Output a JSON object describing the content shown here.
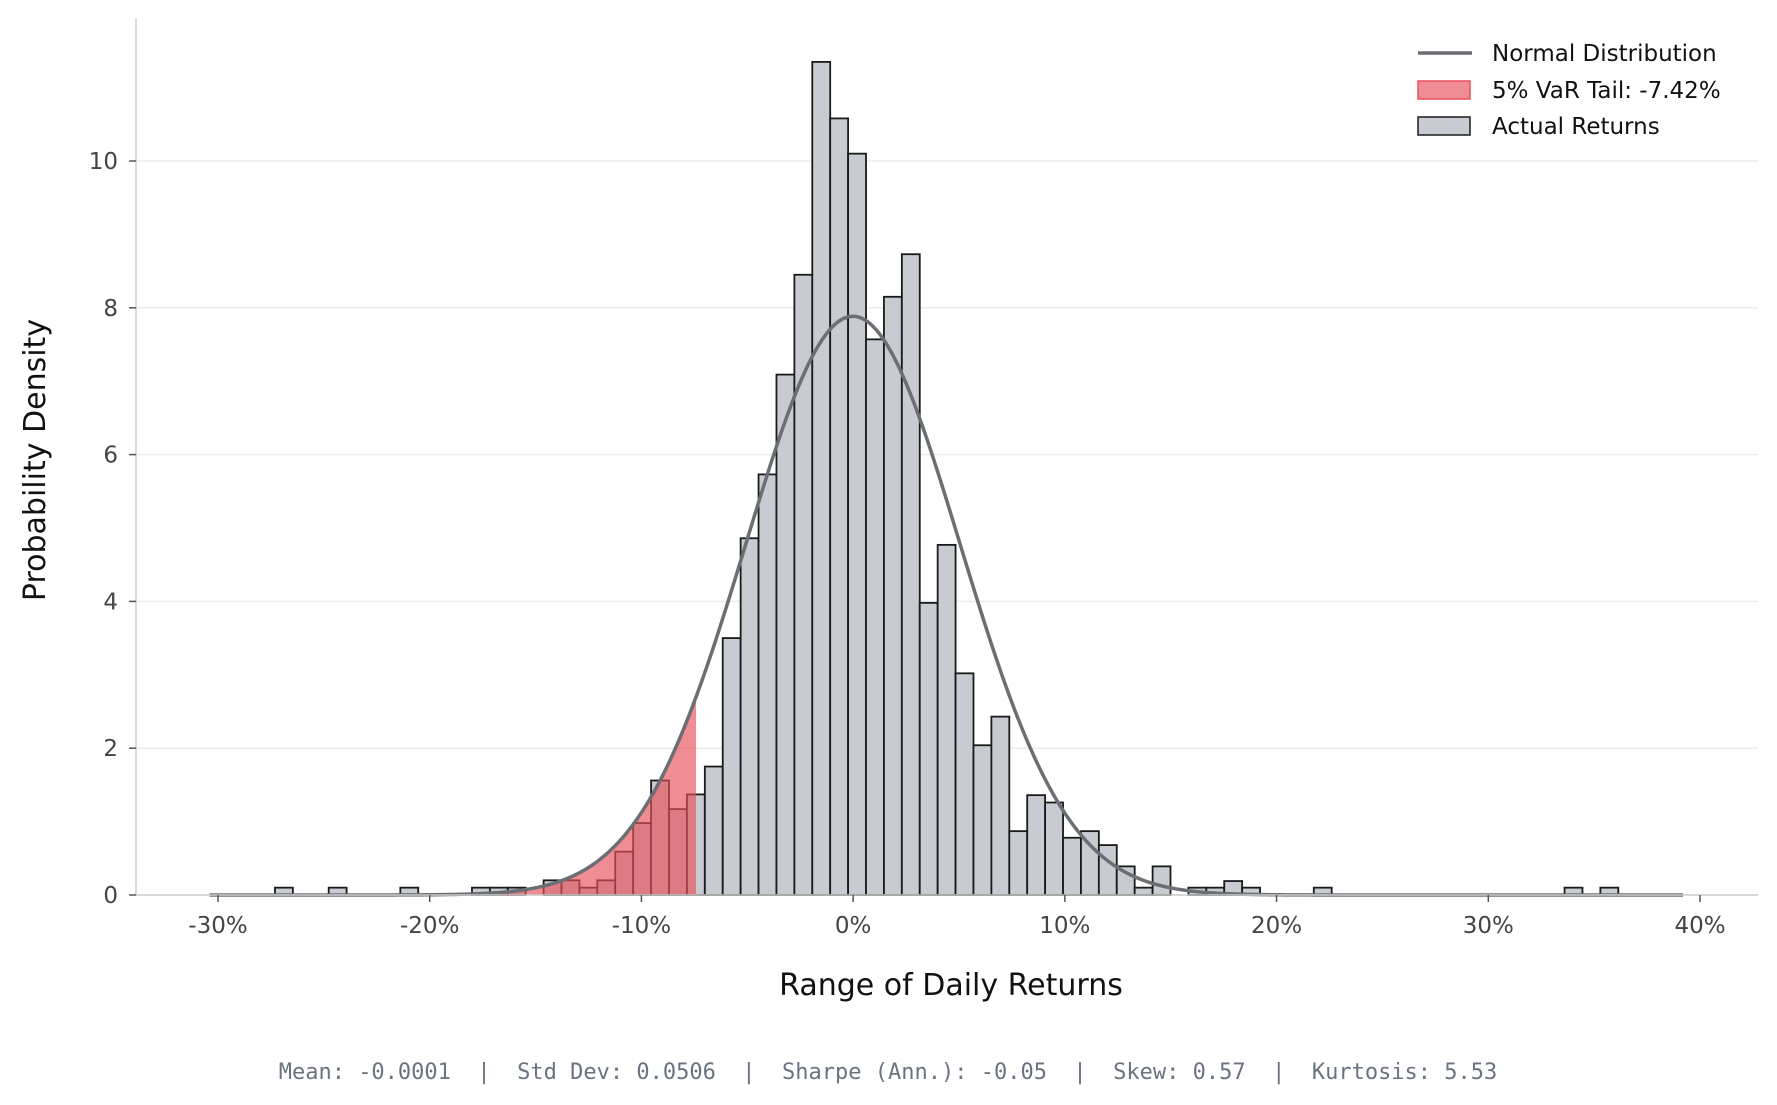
{
  "chart_data": {
    "type": "bar",
    "subtype": "histogram with normal overlay",
    "xlabel": "Range of Daily Returns",
    "ylabel": "Probability Density",
    "x_unit": "%",
    "xlim": [
      -34,
      42.5
    ],
    "ylim": [
      0,
      11.9
    ],
    "x_ticks": [
      -30,
      -20,
      -10,
      0,
      10,
      20,
      30,
      40
    ],
    "x_tick_labels": [
      "-30%",
      "-20%",
      "-10%",
      "0%",
      "10%",
      "20%",
      "30%",
      "40%"
    ],
    "y_ticks": [
      0,
      2,
      4,
      6,
      8,
      10
    ],
    "y_tick_labels": [
      "0",
      "2",
      "4",
      "6",
      "8",
      "10"
    ],
    "grid": "horizontal",
    "legend_position": "top-right",
    "legend": [
      {
        "label": "Normal Distribution",
        "kind": "line"
      },
      {
        "label": "5% VaR Tail: -7.42%",
        "kind": "patch-red"
      },
      {
        "label": "Actual Returns",
        "kind": "patch-gray"
      }
    ],
    "histogram": {
      "bin_start": -27.31,
      "bin_width": 0.846,
      "densities": [
        0.1,
        0,
        0,
        0.1,
        0,
        0,
        0,
        0.1,
        0,
        0,
        0,
        0.1,
        0.1,
        0.1,
        0,
        0.2,
        0.2,
        0.1,
        0.2,
        0.59,
        0.98,
        1.56,
        1.17,
        1.37,
        1.75,
        3.5,
        4.86,
        5.73,
        7.09,
        8.45,
        11.35,
        10.58,
        10.1,
        7.57,
        8.15,
        8.73,
        3.98,
        4.77,
        3.02,
        2.04,
        2.43,
        0.87,
        1.36,
        1.26,
        0.78,
        0.87,
        0.68,
        0.39,
        0.1,
        0.39,
        0,
        0.1,
        0.1,
        0.19,
        0.1,
        0,
        0,
        0,
        0.1,
        0,
        0,
        0,
        0,
        0,
        0,
        0,
        0,
        0,
        0,
        0,
        0,
        0,
        0.1,
        0,
        0.1
      ]
    },
    "normal": {
      "mean": -0.0001,
      "std": 0.0506,
      "x_range": [
        -30.4,
        39.2
      ]
    },
    "var_threshold": -7.42,
    "colors": {
      "bars": "#c8ccd2",
      "bar_edge": "#1a1a1a",
      "normal_line": "#6b6e73",
      "var_fill": "#e8505b"
    }
  },
  "footer": {
    "stats": "Mean: -0.0001  |  Std Dev: 0.0506  |  Sharpe (Ann.): -0.05  |  Skew: 0.57  |  Kurtosis: 5.53"
  }
}
